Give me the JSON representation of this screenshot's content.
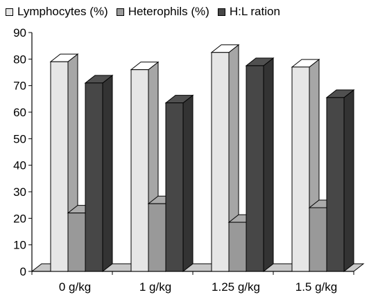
{
  "chart_data": {
    "type": "bar",
    "title": "",
    "xlabel": "",
    "ylabel": "",
    "categories": [
      "0 g/kg",
      "1 g/kg",
      "1.25 g/kg",
      "1.5 g/kg"
    ],
    "series": [
      {
        "name": "Lymphocytes (%)",
        "color": "#e6e6e6",
        "values": [
          79,
          76,
          82.5,
          77
        ]
      },
      {
        "name": "Heterophils (%)",
        "color": "#999999",
        "values": [
          22,
          25.5,
          18.5,
          24
        ]
      },
      {
        "name": "H:L ration",
        "color": "#474747",
        "values": [
          71,
          63.5,
          77.5,
          65.5
        ]
      }
    ],
    "ylim": [
      0,
      90
    ],
    "yticks": [
      "0",
      "10",
      "20",
      "30",
      "40",
      "50",
      "60",
      "70",
      "80",
      "90"
    ],
    "grid": false,
    "legend_position": "top"
  }
}
